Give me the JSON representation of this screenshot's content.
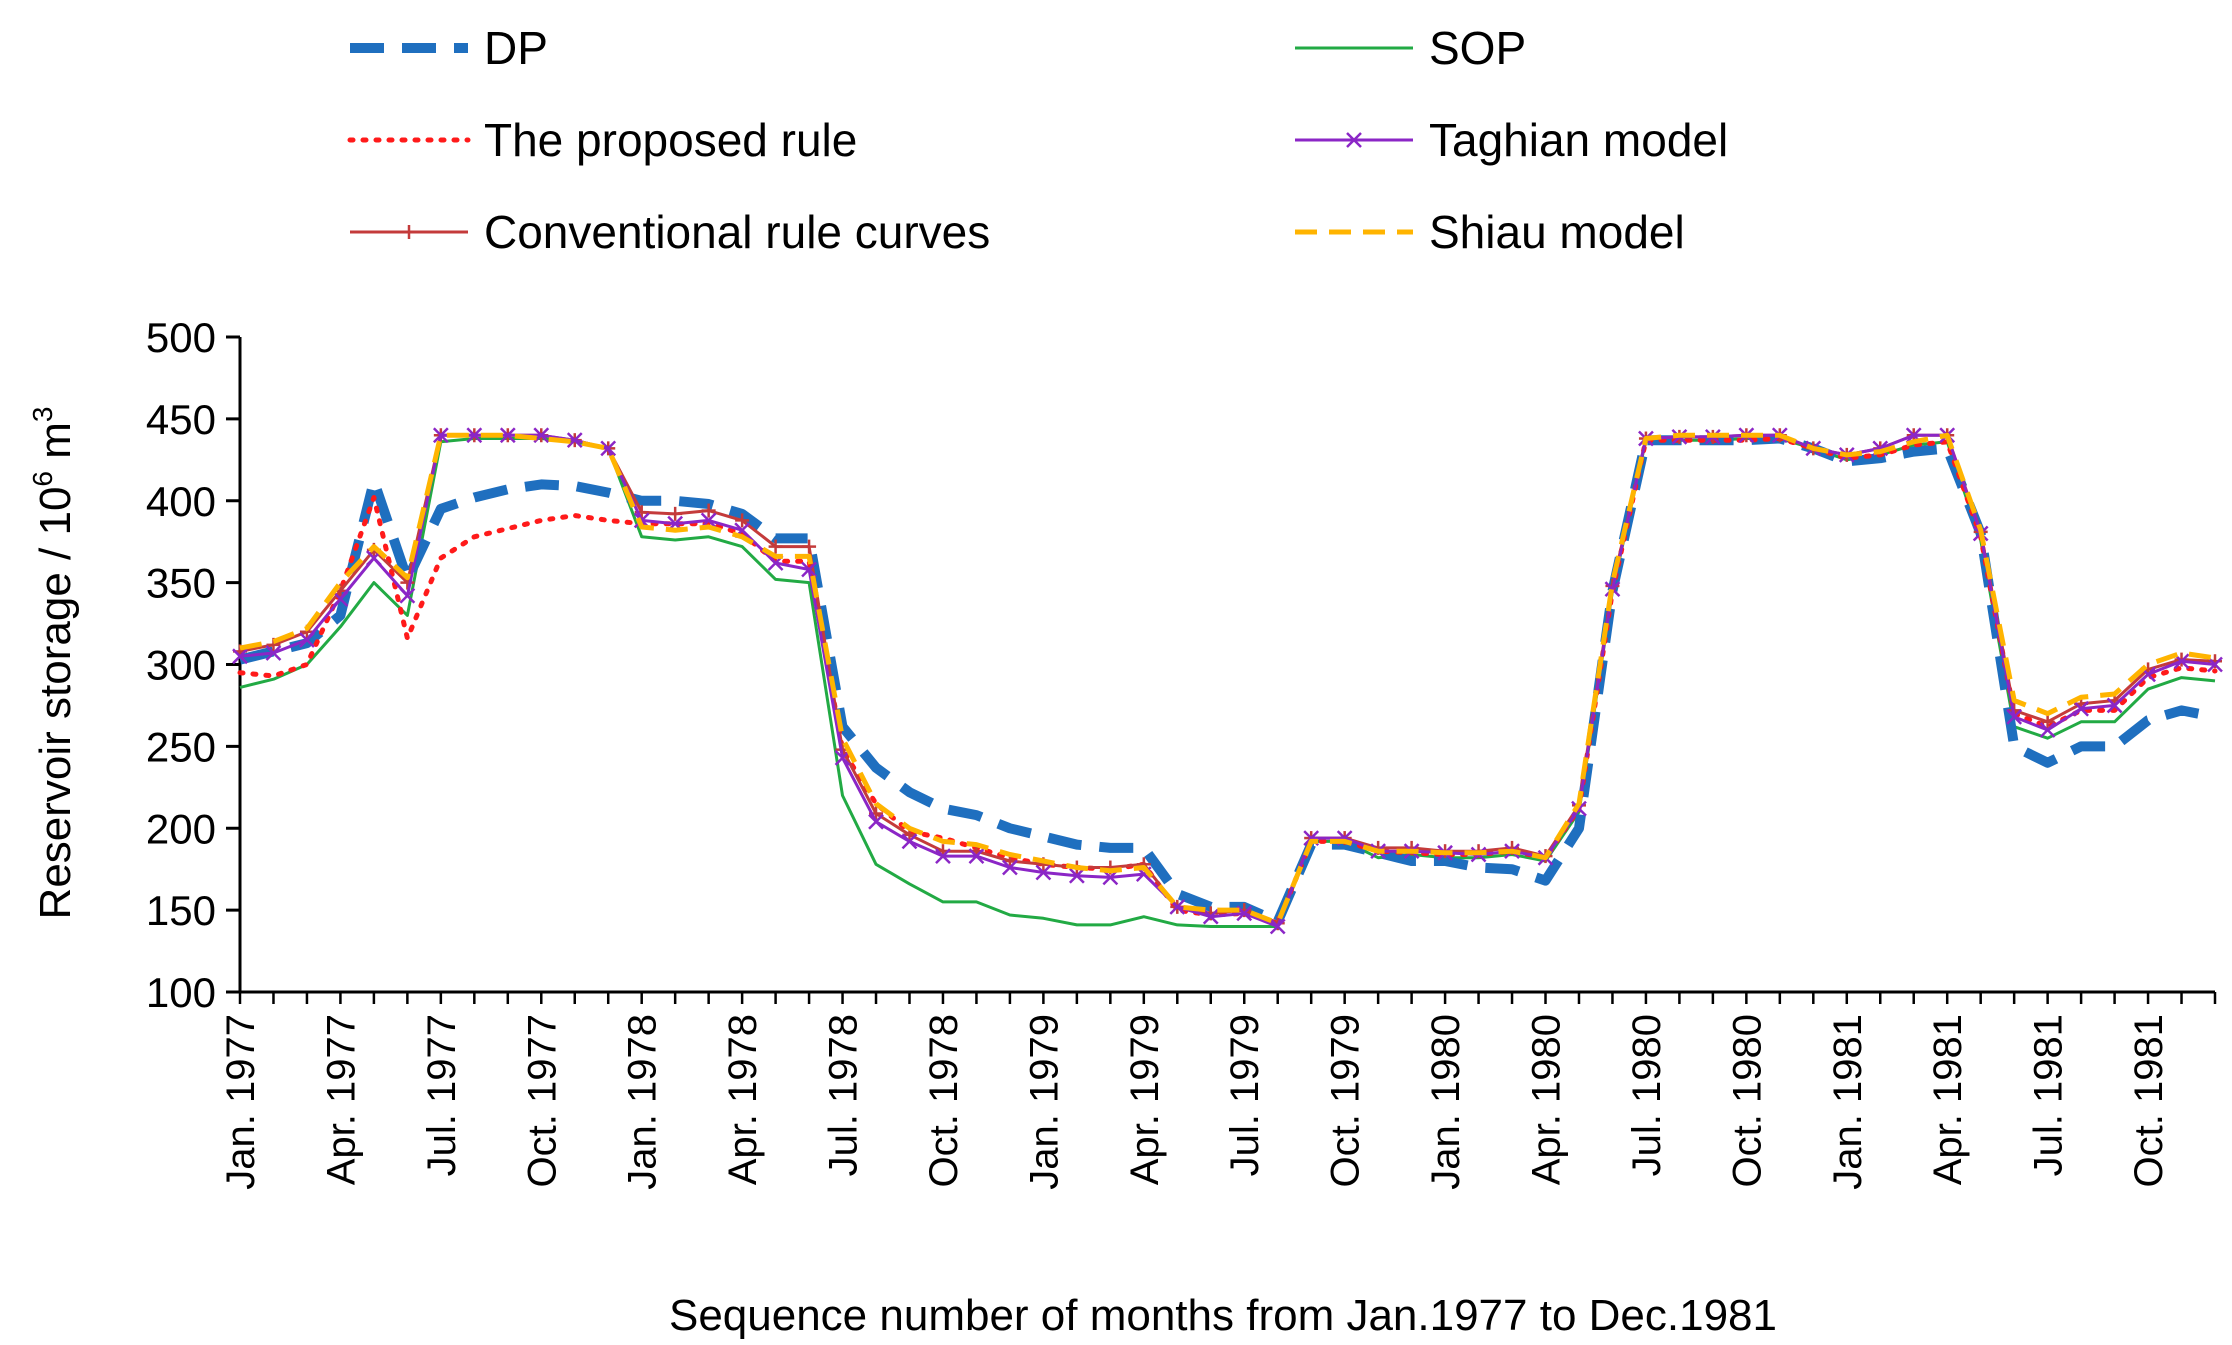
{
  "chart_data": {
    "type": "line",
    "title": "",
    "xlabel": "Sequence number of months from Jan.1977  to  Dec.1981",
    "ylabel": "Reservoir storage / 10",
    "ylabel_sup": "6",
    "ylabel_unit": " m",
    "ylabel_unit_sup": "3",
    "ylim": [
      100,
      500
    ],
    "yticks": [
      100,
      150,
      200,
      250,
      300,
      350,
      400,
      450,
      500
    ],
    "xtick_labels": [
      "Jan. 1977",
      "Apr. 1977",
      "Jul. 1977",
      "Oct. 1977",
      "Jan. 1978",
      "Apr. 1978",
      "Jul. 1978",
      "Oct. 1978",
      "Jan. 1979",
      "Apr. 1979",
      "Jul. 1979",
      "Oct. 1979",
      "Jan. 1980",
      "Apr. 1980",
      "Jul. 1980",
      "Oct. 1980",
      "Jan. 1981",
      "Apr. 1981",
      "Jul. 1981",
      "Oct. 1981"
    ],
    "months": 60,
    "legend": {
      "placement": "top",
      "columns": 2
    },
    "series": [
      {
        "name": "DP",
        "color": "#1f6fbf",
        "style": "dashed-thick",
        "marker": "none",
        "values": [
          303,
          308,
          313,
          330,
          412,
          352,
          395,
          402,
          407,
          410,
          409,
          405,
          400,
          400,
          398,
          392,
          377,
          377,
          262,
          237,
          222,
          212,
          208,
          200,
          195,
          190,
          188,
          188,
          160,
          152,
          152,
          143,
          190,
          190,
          185,
          180,
          180,
          176,
          175,
          168,
          200,
          345,
          437,
          437,
          437,
          437,
          438,
          432,
          424,
          426,
          430,
          432,
          380,
          250,
          240,
          250,
          250,
          266,
          272,
          268
        ]
      },
      {
        "name": "SOP",
        "color": "#22aa44",
        "style": "solid-thin",
        "marker": "none",
        "values": [
          286,
          291,
          300,
          323,
          350,
          330,
          436,
          438,
          438,
          438,
          436,
          432,
          378,
          376,
          378,
          372,
          352,
          350,
          220,
          178,
          166,
          155,
          155,
          147,
          145,
          141,
          141,
          146,
          141,
          140,
          140,
          140,
          192,
          192,
          182,
          184,
          182,
          182,
          184,
          180,
          210,
          345,
          437,
          437,
          437,
          438,
          438,
          432,
          425,
          428,
          434,
          436,
          376,
          262,
          255,
          265,
          265,
          285,
          292,
          290
        ]
      },
      {
        "name": "The proposed rule",
        "color": "#ff1a1a",
        "style": "dotted",
        "marker": "none",
        "values": [
          295,
          293,
          300,
          345,
          402,
          316,
          365,
          378,
          383,
          388,
          391,
          388,
          386,
          386,
          386,
          380,
          363,
          363,
          248,
          215,
          198,
          194,
          188,
          182,
          178,
          176,
          175,
          178,
          150,
          147,
          148,
          142,
          192,
          192,
          186,
          185,
          184,
          184,
          186,
          182,
          212,
          345,
          437,
          437,
          437,
          437,
          438,
          432,
          426,
          428,
          434,
          436,
          378,
          270,
          262,
          272,
          272,
          292,
          298,
          296
        ]
      },
      {
        "name": "Taghian model",
        "color": "#8b26c6",
        "style": "solid",
        "marker": "x",
        "values": [
          305,
          307,
          315,
          340,
          365,
          342,
          440,
          440,
          440,
          440,
          437,
          432,
          388,
          386,
          388,
          382,
          362,
          358,
          243,
          204,
          192,
          183,
          183,
          176,
          173,
          171,
          170,
          172,
          152,
          146,
          148,
          140,
          194,
          194,
          186,
          186,
          185,
          184,
          186,
          182,
          212,
          346,
          438,
          439,
          439,
          440,
          440,
          432,
          428,
          432,
          440,
          440,
          380,
          268,
          260,
          273,
          275,
          294,
          302,
          300
        ]
      },
      {
        "name": "Conventional rule curves",
        "color": "#c43b3b",
        "style": "solid",
        "marker": "plus",
        "values": [
          308,
          312,
          320,
          345,
          370,
          350,
          440,
          440,
          440,
          440,
          437,
          432,
          393,
          392,
          394,
          388,
          372,
          372,
          248,
          209,
          196,
          186,
          186,
          180,
          178,
          176,
          176,
          178,
          152,
          148,
          150,
          142,
          194,
          194,
          188,
          188,
          186,
          186,
          188,
          183,
          214,
          348,
          438,
          439,
          439,
          440,
          440,
          432,
          428,
          432,
          440,
          440,
          381,
          272,
          265,
          276,
          278,
          297,
          303,
          302
        ]
      },
      {
        "name": "Shiau model",
        "color": "#ffb400",
        "style": "dashed",
        "marker": "none",
        "values": [
          310,
          314,
          322,
          350,
          372,
          353,
          440,
          440,
          440,
          438,
          436,
          432,
          384,
          382,
          384,
          378,
          366,
          366,
          255,
          215,
          200,
          192,
          190,
          184,
          180,
          176,
          174,
          176,
          152,
          150,
          150,
          142,
          192,
          192,
          186,
          186,
          185,
          185,
          186,
          182,
          215,
          350,
          438,
          440,
          440,
          440,
          440,
          432,
          428,
          430,
          436,
          440,
          382,
          278,
          270,
          280,
          282,
          300,
          307,
          304
        ]
      }
    ]
  }
}
